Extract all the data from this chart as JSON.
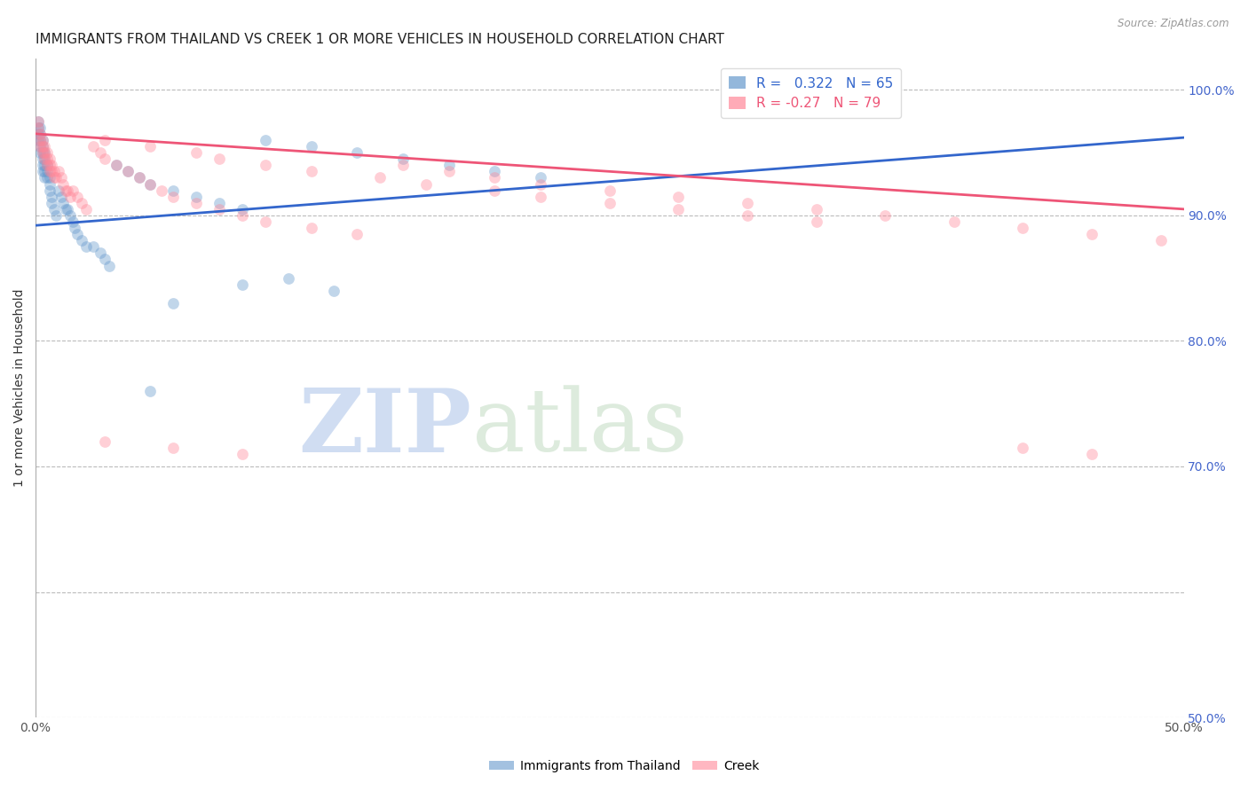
{
  "title": "IMMIGRANTS FROM THAILAND VS CREEK 1 OR MORE VEHICLES IN HOUSEHOLD CORRELATION CHART",
  "source": "Source: ZipAtlas.com",
  "ylabel": "1 or more Vehicles in Household",
  "xlim": [
    0.0,
    0.5
  ],
  "ylim": [
    0.5,
    1.025
  ],
  "x_ticks": [
    0.0,
    0.1,
    0.2,
    0.3,
    0.4,
    0.5
  ],
  "x_tick_labels": [
    "0.0%",
    "",
    "",
    "",
    "",
    "50.0%"
  ],
  "y_ticks": [
    0.5,
    0.6,
    0.7,
    0.8,
    0.9,
    1.0
  ],
  "y_tick_labels": [
    "50.0%",
    "",
    "70.0%",
    "80.0%",
    "90.0%",
    "100.0%"
  ],
  "blue_R": 0.322,
  "blue_N": 65,
  "pink_R": -0.27,
  "pink_N": 79,
  "blue_color": "#6699CC",
  "pink_color": "#FF8899",
  "blue_line_color": "#3366CC",
  "pink_line_color": "#EE5577",
  "watermark_zip": "ZIP",
  "watermark_atlas": "atlas",
  "legend_label_blue": "Immigrants from Thailand",
  "legend_label_pink": "Creek",
  "blue_x": [
    0.001,
    0.001,
    0.001,
    0.001,
    0.002,
    0.002,
    0.002,
    0.002,
    0.002,
    0.003,
    0.003,
    0.003,
    0.003,
    0.003,
    0.003,
    0.004,
    0.004,
    0.004,
    0.004,
    0.004,
    0.005,
    0.005,
    0.005,
    0.006,
    0.006,
    0.006,
    0.007,
    0.007,
    0.008,
    0.009,
    0.01,
    0.011,
    0.012,
    0.013,
    0.014,
    0.015,
    0.016,
    0.017,
    0.018,
    0.02,
    0.022,
    0.025,
    0.028,
    0.03,
    0.032,
    0.035,
    0.04,
    0.045,
    0.05,
    0.06,
    0.07,
    0.08,
    0.09,
    0.1,
    0.12,
    0.14,
    0.16,
    0.18,
    0.2,
    0.22,
    0.05,
    0.06,
    0.13,
    0.09,
    0.11
  ],
  "blue_y": [
    0.975,
    0.97,
    0.965,
    0.96,
    0.97,
    0.965,
    0.96,
    0.955,
    0.95,
    0.96,
    0.955,
    0.95,
    0.945,
    0.94,
    0.935,
    0.95,
    0.945,
    0.94,
    0.935,
    0.93,
    0.94,
    0.935,
    0.93,
    0.93,
    0.925,
    0.92,
    0.915,
    0.91,
    0.905,
    0.9,
    0.92,
    0.915,
    0.91,
    0.905,
    0.905,
    0.9,
    0.895,
    0.89,
    0.885,
    0.88,
    0.875,
    0.875,
    0.87,
    0.865,
    0.86,
    0.94,
    0.935,
    0.93,
    0.925,
    0.92,
    0.915,
    0.91,
    0.905,
    0.96,
    0.955,
    0.95,
    0.945,
    0.94,
    0.935,
    0.93,
    0.76,
    0.83,
    0.84,
    0.845,
    0.85
  ],
  "pink_x": [
    0.001,
    0.001,
    0.002,
    0.002,
    0.002,
    0.003,
    0.003,
    0.003,
    0.004,
    0.004,
    0.004,
    0.005,
    0.005,
    0.005,
    0.006,
    0.006,
    0.006,
    0.007,
    0.007,
    0.008,
    0.008,
    0.009,
    0.01,
    0.011,
    0.012,
    0.013,
    0.014,
    0.015,
    0.016,
    0.018,
    0.02,
    0.022,
    0.025,
    0.028,
    0.03,
    0.035,
    0.04,
    0.045,
    0.05,
    0.055,
    0.06,
    0.07,
    0.08,
    0.09,
    0.1,
    0.12,
    0.14,
    0.16,
    0.18,
    0.2,
    0.22,
    0.25,
    0.28,
    0.31,
    0.34,
    0.37,
    0.4,
    0.43,
    0.46,
    0.49,
    0.03,
    0.05,
    0.07,
    0.08,
    0.1,
    0.12,
    0.15,
    0.17,
    0.2,
    0.22,
    0.25,
    0.28,
    0.31,
    0.34,
    0.03,
    0.06,
    0.09,
    0.43,
    0.46
  ],
  "pink_y": [
    0.975,
    0.97,
    0.965,
    0.96,
    0.955,
    0.96,
    0.955,
    0.95,
    0.955,
    0.95,
    0.945,
    0.95,
    0.945,
    0.94,
    0.945,
    0.94,
    0.935,
    0.94,
    0.935,
    0.935,
    0.93,
    0.93,
    0.935,
    0.93,
    0.925,
    0.92,
    0.92,
    0.915,
    0.92,
    0.915,
    0.91,
    0.905,
    0.955,
    0.95,
    0.945,
    0.94,
    0.935,
    0.93,
    0.925,
    0.92,
    0.915,
    0.91,
    0.905,
    0.9,
    0.895,
    0.89,
    0.885,
    0.94,
    0.935,
    0.93,
    0.925,
    0.92,
    0.915,
    0.91,
    0.905,
    0.9,
    0.895,
    0.89,
    0.885,
    0.88,
    0.96,
    0.955,
    0.95,
    0.945,
    0.94,
    0.935,
    0.93,
    0.925,
    0.92,
    0.915,
    0.91,
    0.905,
    0.9,
    0.895,
    0.72,
    0.715,
    0.71,
    0.715,
    0.71
  ],
  "background_color": "#FFFFFF",
  "grid_color": "#BBBBBB",
  "title_fontsize": 11,
  "right_axis_color": "#4466CC",
  "marker_size": 85,
  "marker_alpha": 0.4
}
